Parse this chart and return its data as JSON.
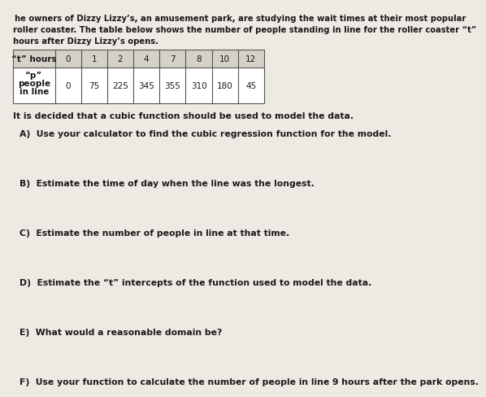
{
  "intro_line1": " he owners of Dizzy Lizzy’s, an amusement park, are studying the wait times at their most popular",
  "intro_line2": "roller coaster. The table below shows the number of people standing in line for the roller coaster “t”",
  "intro_line3": "hours after Dizzy Lizzy’s opens.",
  "t_hours_label": "“t” hours",
  "p_label_line1": "“p”",
  "p_label_line2": "people",
  "p_label_line3": "in line",
  "t_values": [
    "0",
    "1",
    "2",
    "4",
    "7",
    "8",
    "10",
    "12"
  ],
  "p_values": [
    "0",
    "75",
    "225",
    "345",
    "355",
    "310",
    "180",
    "45"
  ],
  "cubic_note": "It is decided that a cubic function should be used to model the data.",
  "q_A": "A)  Use your calculator to find the cubic regression function for the model.",
  "q_B": "B)  Estimate the time of day when the line was the longest.",
  "q_C": "C)  Estimate the number of people in line at that time.",
  "q_D": "D)  Estimate the “t” intercepts of the function used to model the data.",
  "q_E": "E)  What would a reasonable domain be?",
  "q_F": "F)  Use your function to calculate the number of people in line 9 hours after the park opens.",
  "bg_color": "#ede9e3",
  "text_color": "#1a1a1a",
  "table_bg": "#ffffff",
  "table_border": "#555555",
  "header_bg": "#d5d0c8"
}
